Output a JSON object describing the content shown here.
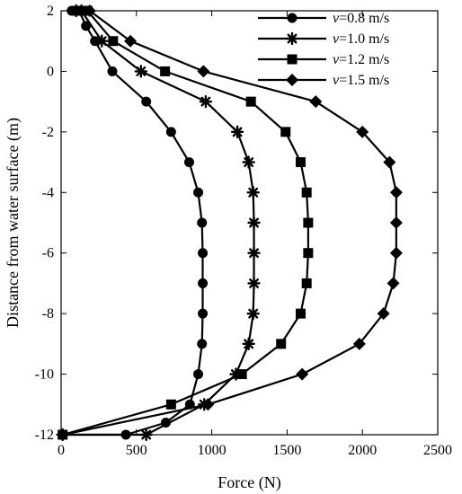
{
  "chart_data": {
    "type": "line",
    "title": "",
    "xlabel": "Force (N)",
    "ylabel": "Distance from water surface (m)",
    "xlim": [
      0,
      2500
    ],
    "ylim": [
      -12,
      2
    ],
    "xticks": [
      0,
      500,
      1000,
      1500,
      2000,
      2500
    ],
    "yticks": [
      -12,
      -10,
      -8,
      -6,
      -4,
      -2,
      0,
      2
    ],
    "grid": false,
    "legend_position": "top-right",
    "series": [
      {
        "name": "v=0.8 m/s",
        "legend_italic": "v",
        "legend_rest": "=0.8 m/s",
        "marker": "circle",
        "x": [
          70,
          120,
          165,
          225,
          340,
          565,
          730,
          850,
          910,
          935,
          940,
          940,
          940,
          935,
          910,
          855,
          695,
          430,
          10
        ],
        "y": [
          2,
          2,
          1.5,
          1,
          0,
          -1,
          -2,
          -3,
          -4,
          -5,
          -6,
          -7,
          -8,
          -9,
          -10,
          -11,
          -11.6,
          -12,
          -12
        ]
      },
      {
        "name": "v=1.0 m/s",
        "legend_italic": "v",
        "legend_rest": "=1.0 m/s",
        "marker": "star",
        "x": [
          100,
          135,
          270,
          530,
          960,
          1170,
          1245,
          1275,
          1280,
          1280,
          1280,
          1275,
          1245,
          1160,
          950,
          565,
          10
        ],
        "y": [
          2,
          2,
          1,
          0,
          -1,
          -2,
          -3,
          -4,
          -5,
          -6,
          -7,
          -8,
          -9,
          -10,
          -11,
          -12,
          -12
        ],
        "x_markers_note": ""
      },
      {
        "name": "v=1.2 m/s",
        "legend_italic": "v",
        "legend_rest": "=1.2 m/s",
        "marker": "square",
        "x": [
          100,
          175,
          345,
          690,
          1260,
          1490,
          1590,
          1630,
          1640,
          1640,
          1630,
          1590,
          1460,
          1200,
          730,
          10
        ],
        "y": [
          2,
          2,
          1,
          0,
          -1,
          -2,
          -3,
          -4,
          -5,
          -6,
          -7,
          -8,
          -9,
          -10,
          -11,
          -12
        ]
      },
      {
        "name": "v=1.5 m/s",
        "legend_italic": "v",
        "legend_rest": "=1.5 m/s",
        "marker": "diamond",
        "x": [
          190,
          460,
          945,
          1690,
          2000,
          2180,
          2225,
          2225,
          2225,
          2205,
          2140,
          1980,
          1600,
          975,
          10
        ],
        "y": [
          2,
          1,
          0,
          -1,
          -2,
          -3,
          -4,
          -5,
          -6,
          -7,
          -8,
          -9,
          -10,
          -11,
          -12
        ]
      }
    ]
  }
}
